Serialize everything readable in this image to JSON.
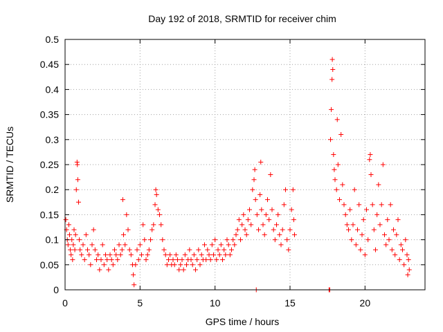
{
  "chart_data": {
    "type": "scatter",
    "title": "Day 192 of 2018, SRMTID for receiver chim",
    "xlabel": "GPS time / hours",
    "ylabel": "SRMTID / TECUs",
    "xlim": [
      0,
      24
    ],
    "ylim": [
      0,
      0.5
    ],
    "xticks": [
      0,
      5,
      10,
      15,
      20
    ],
    "xtick_labels": [
      "0",
      "5",
      "10",
      "15",
      "20"
    ],
    "yticks": [
      0,
      0.05,
      0.1,
      0.15,
      0.2,
      0.25,
      0.3,
      0.35,
      0.4,
      0.45,
      0.5
    ],
    "ytick_labels": [
      "0",
      "0.05",
      "0.1",
      "0.15",
      "0.2",
      "0.25",
      "0.3",
      "0.35",
      "0.4",
      "0.45",
      "0.5"
    ],
    "grid": true,
    "marker": "plus",
    "color": "#ff0000",
    "series": [
      {
        "name": "SRMTID",
        "points": [
          [
            0.05,
            0.14
          ],
          [
            0.1,
            0.12
          ],
          [
            0.15,
            0.1
          ],
          [
            0.2,
            0.09
          ],
          [
            0.25,
            0.13
          ],
          [
            0.3,
            0.11
          ],
          [
            0.35,
            0.08
          ],
          [
            0.4,
            0.07
          ],
          [
            0.45,
            0.1
          ],
          [
            0.5,
            0.06
          ],
          [
            0.55,
            0.09
          ],
          [
            0.6,
            0.12
          ],
          [
            0.65,
            0.08
          ],
          [
            0.7,
            0.11
          ],
          [
            0.75,
            0.2
          ],
          [
            0.8,
            0.255
          ],
          [
            0.82,
            0.25
          ],
          [
            0.85,
            0.22
          ],
          [
            0.9,
            0.175
          ],
          [
            0.95,
            0.1
          ],
          [
            1.0,
            0.08
          ],
          [
            1.1,
            0.07
          ],
          [
            1.2,
            0.09
          ],
          [
            1.3,
            0.06
          ],
          [
            1.4,
            0.11
          ],
          [
            1.5,
            0.08
          ],
          [
            1.6,
            0.07
          ],
          [
            1.7,
            0.05
          ],
          [
            1.8,
            0.09
          ],
          [
            1.9,
            0.12
          ],
          [
            2.0,
            0.08
          ],
          [
            2.1,
            0.06
          ],
          [
            2.2,
            0.07
          ],
          [
            2.3,
            0.04
          ],
          [
            2.4,
            0.06
          ],
          [
            2.5,
            0.09
          ],
          [
            2.6,
            0.05
          ],
          [
            2.7,
            0.07
          ],
          [
            2.8,
            0.06
          ],
          [
            2.9,
            0.04
          ],
          [
            3.0,
            0.07
          ],
          [
            3.1,
            0.06
          ],
          [
            3.2,
            0.05
          ],
          [
            3.3,
            0.08
          ],
          [
            3.4,
            0.07
          ],
          [
            3.5,
            0.06
          ],
          [
            3.6,
            0.09
          ],
          [
            3.7,
            0.07
          ],
          [
            3.8,
            0.08
          ],
          [
            3.85,
            0.18
          ],
          [
            3.9,
            0.11
          ],
          [
            4.0,
            0.09
          ],
          [
            4.1,
            0.15
          ],
          [
            4.2,
            0.12
          ],
          [
            4.3,
            0.08
          ],
          [
            4.4,
            0.07
          ],
          [
            4.5,
            0.05
          ],
          [
            4.55,
            0.03
          ],
          [
            4.6,
            0.01
          ],
          [
            4.7,
            0.05
          ],
          [
            4.8,
            0.08
          ],
          [
            4.9,
            0.06
          ],
          [
            5.0,
            0.09
          ],
          [
            5.1,
            0.07
          ],
          [
            5.2,
            0.13
          ],
          [
            5.3,
            0.1
          ],
          [
            5.4,
            0.06
          ],
          [
            5.5,
            0.07
          ],
          [
            5.6,
            0.08
          ],
          [
            5.7,
            0.1
          ],
          [
            5.8,
            0.12
          ],
          [
            5.9,
            0.13
          ],
          [
            6.0,
            0.17
          ],
          [
            6.05,
            0.2
          ],
          [
            6.1,
            0.19
          ],
          [
            6.2,
            0.16
          ],
          [
            6.3,
            0.15
          ],
          [
            6.4,
            0.13
          ],
          [
            6.5,
            0.1
          ],
          [
            6.6,
            0.08
          ],
          [
            6.7,
            0.07
          ],
          [
            6.8,
            0.05
          ],
          [
            6.9,
            0.06
          ],
          [
            7.0,
            0.07
          ],
          [
            7.1,
            0.05
          ],
          [
            7.2,
            0.06
          ],
          [
            7.3,
            0.05
          ],
          [
            7.4,
            0.07
          ],
          [
            7.5,
            0.06
          ],
          [
            7.6,
            0.04
          ],
          [
            7.7,
            0.05
          ],
          [
            7.8,
            0.06
          ],
          [
            7.9,
            0.04
          ],
          [
            8.0,
            0.07
          ],
          [
            8.1,
            0.05
          ],
          [
            8.2,
            0.06
          ],
          [
            8.3,
            0.08
          ],
          [
            8.4,
            0.06
          ],
          [
            8.5,
            0.05
          ],
          [
            8.6,
            0.07
          ],
          [
            8.7,
            0.04
          ],
          [
            8.8,
            0.06
          ],
          [
            8.9,
            0.08
          ],
          [
            9.0,
            0.05
          ],
          [
            9.1,
            0.07
          ],
          [
            9.2,
            0.06
          ],
          [
            9.3,
            0.09
          ],
          [
            9.4,
            0.06
          ],
          [
            9.5,
            0.08
          ],
          [
            9.6,
            0.07
          ],
          [
            9.7,
            0.06
          ],
          [
            9.8,
            0.09
          ],
          [
            9.9,
            0.07
          ],
          [
            10.0,
            0.1
          ],
          [
            10.1,
            0.06
          ],
          [
            10.2,
            0.08
          ],
          [
            10.3,
            0.07
          ],
          [
            10.4,
            0.09
          ],
          [
            10.5,
            0.06
          ],
          [
            10.6,
            0.08
          ],
          [
            10.7,
            0.07
          ],
          [
            10.8,
            0.1
          ],
          [
            10.9,
            0.09
          ],
          [
            11.0,
            0.07
          ],
          [
            11.1,
            0.08
          ],
          [
            11.2,
            0.1
          ],
          [
            11.3,
            0.09
          ],
          [
            11.4,
            0.11
          ],
          [
            11.5,
            0.12
          ],
          [
            11.6,
            0.14
          ],
          [
            11.7,
            0.1
          ],
          [
            11.8,
            0.13
          ],
          [
            11.9,
            0.15
          ],
          [
            12.0,
            0.12
          ],
          [
            12.1,
            0.11
          ],
          [
            12.2,
            0.14
          ],
          [
            12.3,
            0.16
          ],
          [
            12.4,
            0.13
          ],
          [
            12.5,
            0.2
          ],
          [
            12.6,
            0.22
          ],
          [
            12.65,
            0.24
          ],
          [
            12.7,
            0.18
          ],
          [
            12.75,
            0.0
          ],
          [
            12.8,
            0.15
          ],
          [
            12.9,
            0.12
          ],
          [
            13.0,
            0.19
          ],
          [
            13.05,
            0.255
          ],
          [
            13.1,
            0.16
          ],
          [
            13.2,
            0.13
          ],
          [
            13.3,
            0.11
          ],
          [
            13.4,
            0.15
          ],
          [
            13.5,
            0.18
          ],
          [
            13.6,
            0.14
          ],
          [
            13.7,
            0.23
          ],
          [
            13.8,
            0.16
          ],
          [
            13.9,
            0.12
          ],
          [
            14.0,
            0.1
          ],
          [
            14.1,
            0.13
          ],
          [
            14.2,
            0.15
          ],
          [
            14.3,
            0.11
          ],
          [
            14.4,
            0.09
          ],
          [
            14.5,
            0.12
          ],
          [
            14.6,
            0.17
          ],
          [
            14.7,
            0.2
          ],
          [
            14.8,
            0.1
          ],
          [
            14.9,
            0.08
          ],
          [
            15.0,
            0.12
          ],
          [
            15.1,
            0.16
          ],
          [
            15.2,
            0.2
          ],
          [
            15.25,
            0.14
          ],
          [
            15.3,
            0.11
          ],
          [
            17.6,
            0.0
          ],
          [
            17.65,
            0.0
          ],
          [
            17.7,
            0.3
          ],
          [
            17.75,
            0.36
          ],
          [
            17.8,
            0.42
          ],
          [
            17.82,
            0.46
          ],
          [
            17.85,
            0.44
          ],
          [
            17.9,
            0.27
          ],
          [
            17.95,
            0.24
          ],
          [
            18.0,
            0.22
          ],
          [
            18.1,
            0.2
          ],
          [
            18.15,
            0.34
          ],
          [
            18.2,
            0.25
          ],
          [
            18.3,
            0.18
          ],
          [
            18.4,
            0.31
          ],
          [
            18.5,
            0.21
          ],
          [
            18.6,
            0.17
          ],
          [
            18.7,
            0.15
          ],
          [
            18.8,
            0.13
          ],
          [
            18.9,
            0.12
          ],
          [
            19.0,
            0.16
          ],
          [
            19.1,
            0.1
          ],
          [
            19.2,
            0.13
          ],
          [
            19.3,
            0.2
          ],
          [
            19.4,
            0.09
          ],
          [
            19.5,
            0.12
          ],
          [
            19.6,
            0.17
          ],
          [
            19.7,
            0.08
          ],
          [
            19.8,
            0.11
          ],
          [
            19.9,
            0.14
          ],
          [
            20.0,
            0.07
          ],
          [
            20.1,
            0.16
          ],
          [
            20.2,
            0.1
          ],
          [
            20.3,
            0.26
          ],
          [
            20.35,
            0.27
          ],
          [
            20.4,
            0.23
          ],
          [
            20.5,
            0.17
          ],
          [
            20.6,
            0.12
          ],
          [
            20.7,
            0.08
          ],
          [
            20.8,
            0.15
          ],
          [
            20.9,
            0.21
          ],
          [
            21.0,
            0.13
          ],
          [
            21.1,
            0.17
          ],
          [
            21.2,
            0.25
          ],
          [
            21.3,
            0.11
          ],
          [
            21.4,
            0.09
          ],
          [
            21.5,
            0.14
          ],
          [
            21.6,
            0.1
          ],
          [
            21.7,
            0.17
          ],
          [
            21.8,
            0.08
          ],
          [
            21.9,
            0.12
          ],
          [
            22.0,
            0.07
          ],
          [
            22.1,
            0.11
          ],
          [
            22.2,
            0.14
          ],
          [
            22.3,
            0.06
          ],
          [
            22.4,
            0.09
          ],
          [
            22.5,
            0.08
          ],
          [
            22.6,
            0.05
          ],
          [
            22.7,
            0.1
          ],
          [
            22.8,
            0.07
          ],
          [
            22.85,
            0.03
          ],
          [
            22.9,
            0.06
          ],
          [
            22.95,
            0.04
          ]
        ]
      }
    ]
  }
}
